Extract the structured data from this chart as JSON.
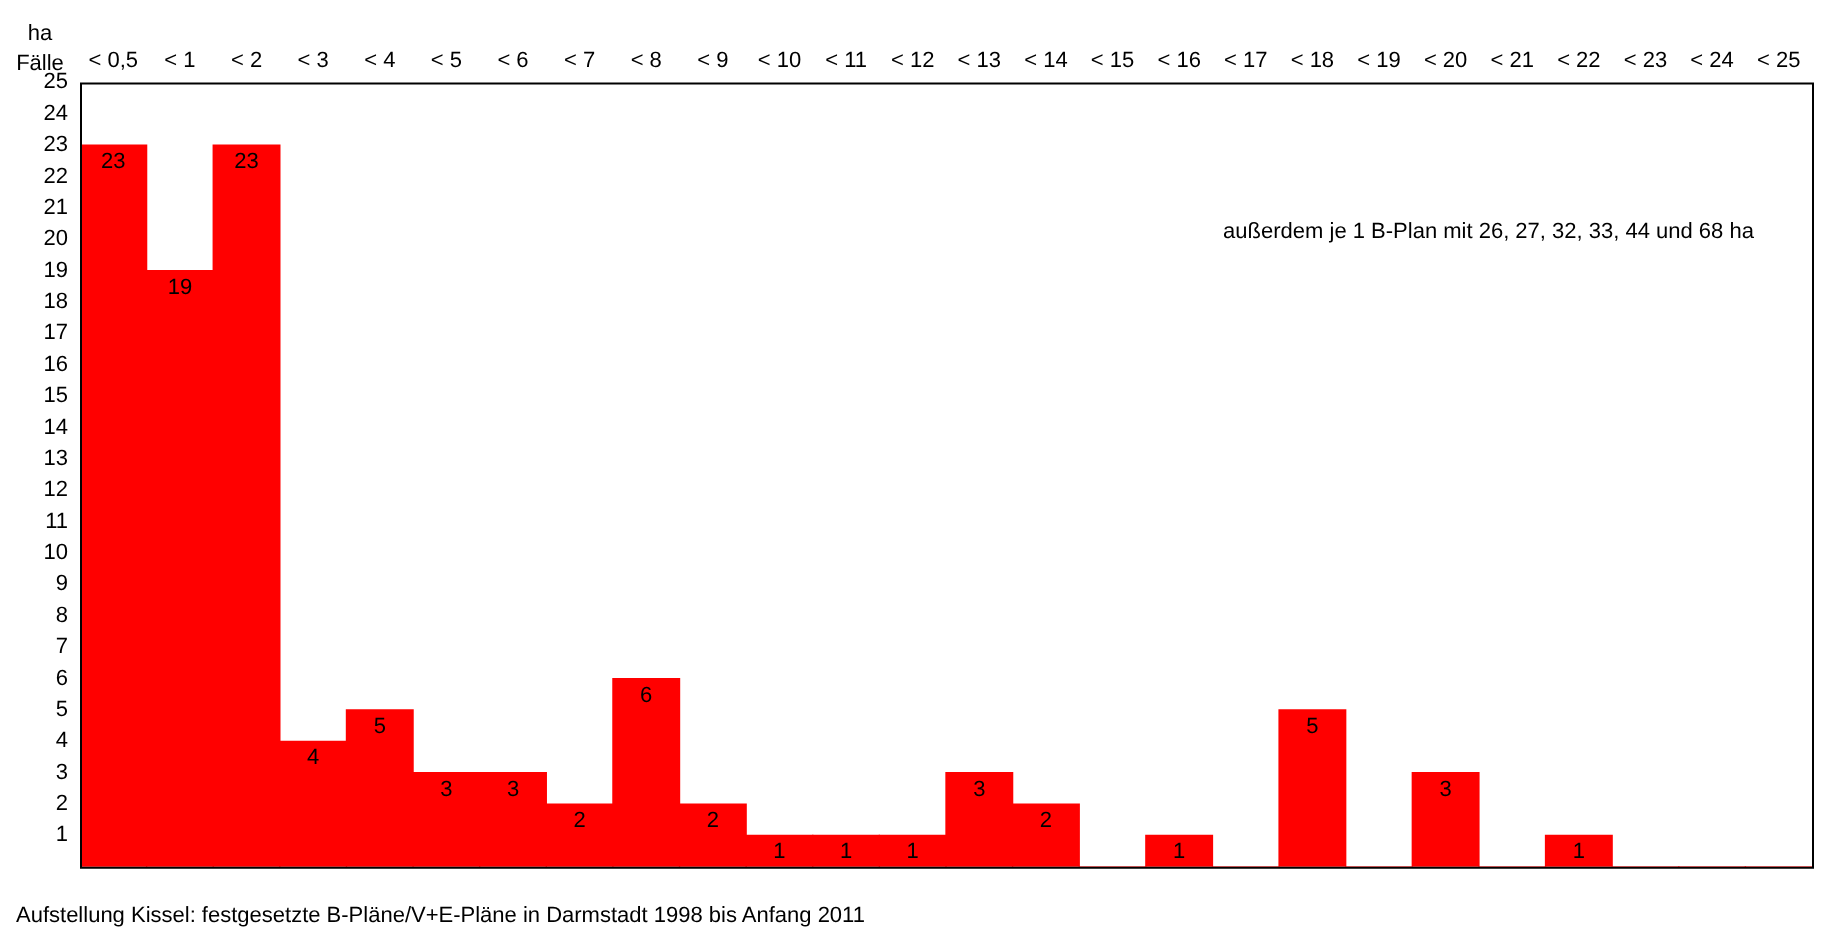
{
  "chart_data": {
    "type": "bar",
    "xlabel": "ha",
    "ylabel": "Fälle",
    "categories": [
      "< 0,5",
      "< 1",
      "< 2",
      "< 3",
      "< 4",
      "< 5",
      "< 6",
      "< 7",
      "< 8",
      "< 9",
      "< 10",
      "< 11",
      "< 12",
      "< 13",
      "< 14",
      "< 15",
      "< 16",
      "< 17",
      "< 18",
      "< 19",
      "< 20",
      "< 21",
      "< 22",
      "< 23",
      "< 24",
      "< 25"
    ],
    "values": [
      23,
      19,
      23,
      4,
      5,
      3,
      3,
      2,
      6,
      2,
      1,
      1,
      1,
      3,
      2,
      0,
      1,
      0,
      5,
      0,
      3,
      0,
      1,
      0,
      0,
      0
    ],
    "value_labels": [
      "23",
      "19",
      "23",
      "4",
      "5",
      "3",
      "3",
      "2",
      "6",
      "2",
      "1",
      "1",
      "1",
      "3",
      "2",
      null,
      "1",
      null,
      "5",
      null,
      "3",
      null,
      "1",
      null,
      null,
      null
    ],
    "color": "#ff0000",
    "ylim": [
      0,
      25
    ],
    "yticks": [
      1,
      2,
      3,
      4,
      5,
      6,
      7,
      8,
      9,
      10,
      11,
      12,
      13,
      14,
      15,
      16,
      17,
      18,
      19,
      20,
      21,
      22,
      23,
      24,
      25
    ],
    "grid": false,
    "legend": false,
    "annotations": [
      "außerdem je 1 B-Plan mit 26, 27, 32, 33, 44 und 68 ha",
      "Aufstellung Kissel: festgesetzte B-Pläne/V+E-Pläne in Darmstadt 1998 bis Anfang 2011"
    ]
  }
}
